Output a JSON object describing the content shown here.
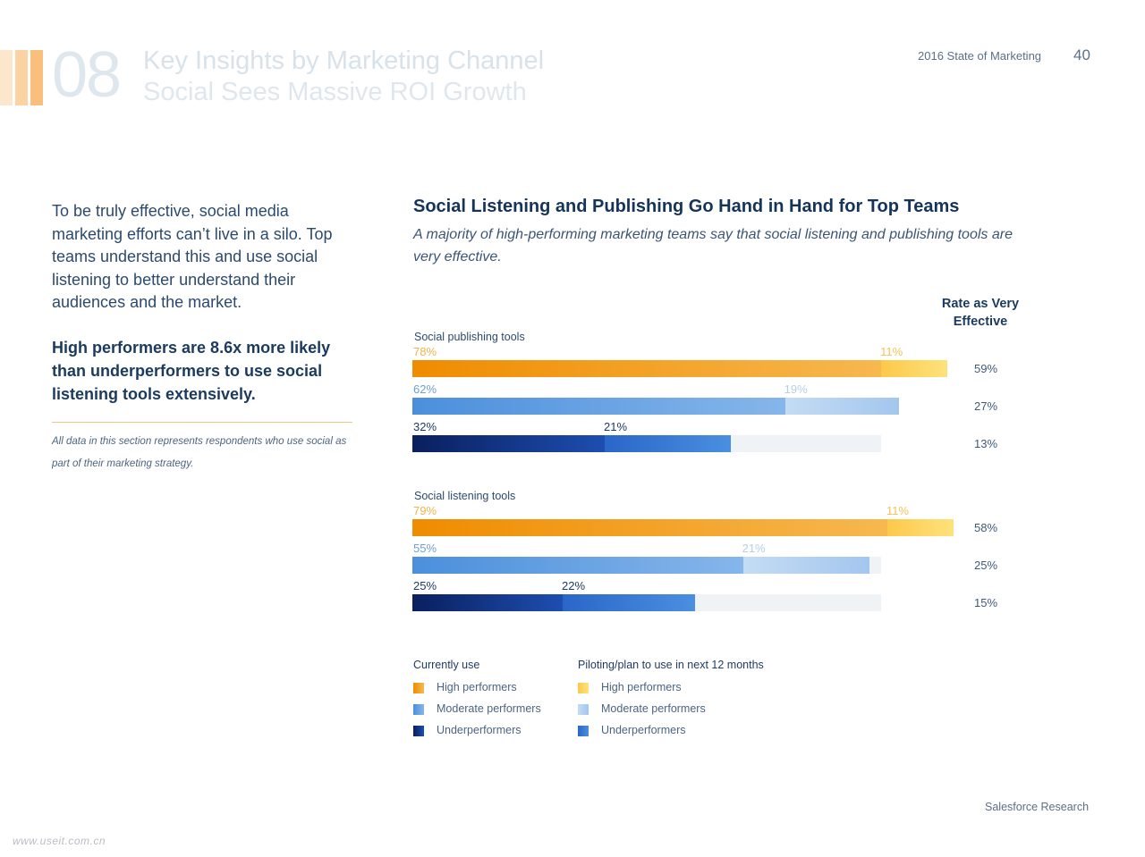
{
  "header": {
    "section_number": "08",
    "section_title": "Key Insights by Marketing Channel",
    "section_subtitle": "Social Sees Massive ROI Growth",
    "report_name": "2016 State of Marketing",
    "page_number": "40"
  },
  "left": {
    "intro": "To be truly effective, social media marketing efforts can’t live in a silo. Top teams understand this and use social listening to better understand their audiences and the market.",
    "highlight": "High performers are 8.6x more likely than underperformers to use social listening tools extensively.",
    "note": "All data in this section represents respondents who use social as part of their marketing strategy."
  },
  "chart_data": {
    "type": "bar",
    "orientation": "horizontal",
    "stacked": true,
    "title": "Social Listening and Publishing Go Hand in Hand for Top Teams",
    "subtitle": "A majority of high-performing marketing teams say that social listening and publishing tools are very effective.",
    "rate_column_header": "Rate as Very Effective",
    "xlim": [
      0,
      100
    ],
    "groups": [
      {
        "label": "Social publishing tools",
        "rows": [
          {
            "series": "High performers",
            "current": 78,
            "current_label": "78%",
            "piloting": 11,
            "piloting_label": "11%",
            "rate": "59%"
          },
          {
            "series": "Moderate performers",
            "current": 62,
            "current_label": "62%",
            "piloting": 19,
            "piloting_label": "19%",
            "rate": "27%"
          },
          {
            "series": "Underperformers",
            "current": 32,
            "current_label": "32%",
            "piloting": 21,
            "piloting_label": "21%",
            "rate": "13%"
          }
        ]
      },
      {
        "label": "Social listening tools",
        "rows": [
          {
            "series": "High performers",
            "current": 79,
            "current_label": "79%",
            "piloting": 11,
            "piloting_label": "11%",
            "rate": "58%"
          },
          {
            "series": "Moderate performers",
            "current": 55,
            "current_label": "55%",
            "piloting": 21,
            "piloting_label": "21%",
            "rate": "25%"
          },
          {
            "series": "Underperformers",
            "current": 25,
            "current_label": "25%",
            "piloting": 22,
            "piloting_label": "22%",
            "rate": "15%"
          }
        ]
      }
    ],
    "colors": {
      "High performers": {
        "current_from": "#ef8c00",
        "current_to": "#f7b84f",
        "piloting_from": "#fcc94a",
        "piloting_to": "#fde27c",
        "current_text": "#f0b24a",
        "piloting_text": "#f3c25c"
      },
      "Moderate performers": {
        "current_from": "#4b8fdc",
        "current_to": "#86b6ea",
        "piloting_from": "#c4dcf4",
        "piloting_to": "#a4c6ee",
        "current_text": "#6a9fd9",
        "piloting_text": "#b6cfe9"
      },
      "Underperformers": {
        "current_from": "#0a1f5e",
        "current_to": "#1d4eb0",
        "piloting_from": "#2a66c8",
        "piloting_to": "#4a8fe0",
        "current_text": "#1e3a66",
        "piloting_text": "#1e3a66"
      }
    },
    "legend": {
      "position": "bottom",
      "current_head": "Currently use",
      "piloting_head": "Piloting/plan to use in next 12 months",
      "items": [
        "High performers",
        "Moderate performers",
        "Underperformers"
      ]
    }
  },
  "footer": {
    "text": "Salesforce Research"
  },
  "watermark": "www.useit.com.cn",
  "stripe_colors": [
    "#fde7cc",
    "#fbd3a3",
    "#f8c07c"
  ]
}
